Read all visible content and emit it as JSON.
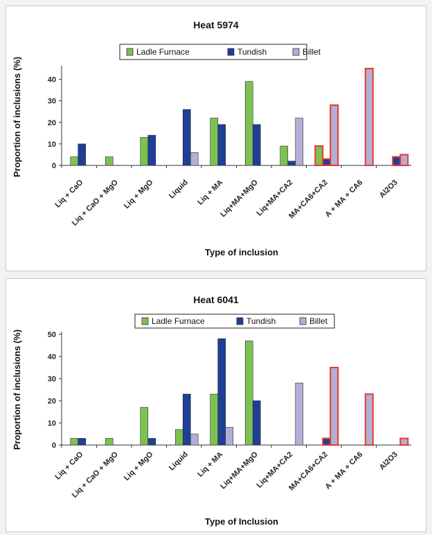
{
  "charts": [
    {
      "title": "Heat 5974",
      "xlabel": "Type of inclusion",
      "ylabel": "Proportion of inclusions (%)",
      "legend": [
        "Ladle Furnace",
        "Tundish",
        "Billet"
      ]
    },
    {
      "title": "Heat 6041",
      "xlabel": "Type of Inclusion",
      "ylabel": "Proportion of inclusions (%)",
      "legend": [
        "Ladle Furnace",
        "Tundish",
        "Billet"
      ]
    }
  ],
  "colors": {
    "ladle": "#7cc152",
    "tundish": "#1f3f96",
    "billet": "#b3aed6",
    "highlight": "#e8382a"
  },
  "chart_data": [
    {
      "type": "bar",
      "title": "Heat 5974",
      "xlabel": "Type of inclusion",
      "ylabel": "Proportion of inclusions (%)",
      "ylim": [
        0,
        45
      ],
      "yticks": [
        0,
        10,
        20,
        30,
        40
      ],
      "categories": [
        "Liq + CaO",
        "Liq + CaO + MgO",
        "Liq + MgO",
        "Liquid",
        "Liq + MA",
        "Liq+MA+MgO",
        "Liq+MA+CA2",
        "MA+CA6+CA2",
        "A + MA + CA6",
        "Al2O3"
      ],
      "series": [
        {
          "name": "Ladle Furnace",
          "values": [
            4,
            4,
            13,
            0,
            22,
            39,
            9,
            9,
            0,
            0
          ]
        },
        {
          "name": "Tundish",
          "values": [
            10,
            0,
            14,
            26,
            19,
            19,
            2,
            3,
            0,
            4
          ]
        },
        {
          "name": "Billet",
          "values": [
            0,
            0,
            0,
            6,
            0,
            0,
            22,
            28,
            45,
            5
          ]
        }
      ],
      "highlighted_categories": [
        "MA+CA6+CA2",
        "A + MA + CA6",
        "Al2O3"
      ],
      "legend_position": "top",
      "grid": false
    },
    {
      "type": "bar",
      "title": "Heat 6041",
      "xlabel": "Type of Inclusion",
      "ylabel": "Proportion of inclusions (%)",
      "ylim": [
        0,
        50
      ],
      "yticks": [
        0,
        10,
        20,
        30,
        40,
        50
      ],
      "categories": [
        "Liq + CaO",
        "Liq + CaO + MgO",
        "Liq + MgO",
        "Liquid",
        "Liq + MA",
        "Liq+MA+MgO",
        "Liq+MA+CA2",
        "MA+CA6+CA2",
        "A + MA + CA6",
        "Al2O3"
      ],
      "series": [
        {
          "name": "Ladle Furnace",
          "values": [
            3,
            3,
            17,
            7,
            23,
            47,
            0,
            0,
            0,
            0
          ]
        },
        {
          "name": "Tundish",
          "values": [
            3,
            0,
            3,
            23,
            48,
            20,
            0,
            3,
            0,
            0
          ]
        },
        {
          "name": "Billet",
          "values": [
            0,
            0,
            0,
            5,
            8,
            0,
            28,
            35,
            23,
            3
          ]
        }
      ],
      "highlighted_categories": [
        "MA+CA6+CA2",
        "A + MA + CA6",
        "Al2O3"
      ],
      "legend_position": "top",
      "grid": false
    }
  ]
}
